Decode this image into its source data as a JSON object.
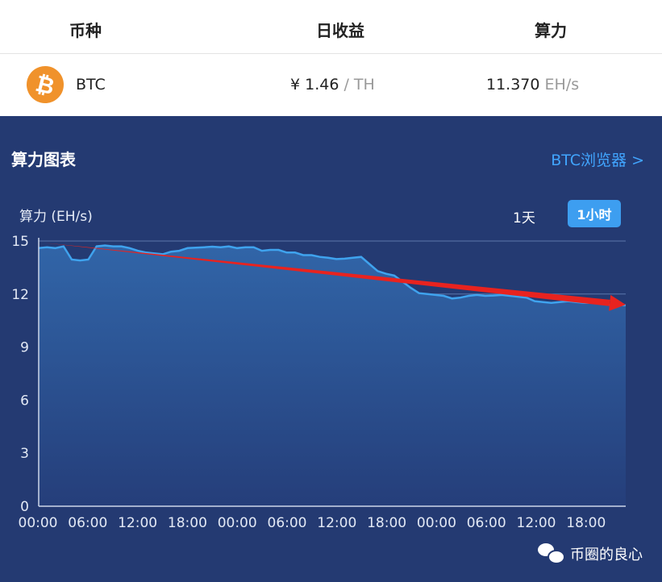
{
  "table": {
    "headers": {
      "coin": "币种",
      "daily_profit": "日收益",
      "hashrate": "算力"
    },
    "row": {
      "coin_icon_symbol": "₿",
      "coin": "BTC",
      "profit_value": "¥ 1.46",
      "profit_unit": "/ TH",
      "hashrate_value": "11.370",
      "hashrate_unit": "EH/s"
    }
  },
  "panel": {
    "title": "算力图表",
    "explorer_link": "BTC浏览器 >",
    "tabs": [
      "1天",
      "1小时"
    ],
    "active_tab": "1小时"
  },
  "watermark": {
    "text": "币圈的良心",
    "icon": "wechat-icon"
  },
  "colors": {
    "panel_bg": "#243a72",
    "line": "#3fa3ee",
    "accent": "#41a5ff",
    "arrow": "#e8231f",
    "coin_icon": "#f0922b"
  },
  "chart_data": {
    "type": "area",
    "ylabel": "算力 (EH/s)",
    "ylim": [
      0,
      15
    ],
    "yticks": [
      0,
      3,
      6,
      9,
      12,
      15
    ],
    "xticks": [
      "00:00",
      "06:00",
      "12:00",
      "18:00",
      "00:00",
      "06:00",
      "12:00",
      "18:00",
      "00:00",
      "06:00",
      "12:00",
      "18:00"
    ],
    "grid": true,
    "series": [
      {
        "values": [
          14.6,
          14.65,
          14.6,
          14.7,
          13.95,
          13.9,
          13.95,
          14.7,
          14.75,
          14.7,
          14.7,
          14.6,
          14.45,
          14.35,
          14.3,
          14.25,
          14.4,
          14.45,
          14.6,
          14.62,
          14.65,
          14.68,
          14.65,
          14.7,
          14.6,
          14.65,
          14.65,
          14.45,
          14.5,
          14.5,
          14.35,
          14.35,
          14.2,
          14.2,
          14.1,
          14.05,
          13.98,
          14.0,
          14.05,
          14.1,
          13.7,
          13.3,
          13.15,
          13.05,
          12.7,
          12.35,
          12.05,
          12.0,
          11.95,
          11.9,
          11.75,
          11.8,
          11.9,
          11.95,
          11.9,
          11.92,
          11.95,
          11.9,
          11.85,
          11.8,
          11.6,
          11.55,
          11.5,
          11.55,
          11.6,
          11.55,
          11.5,
          11.5,
          11.45,
          11.4,
          11.38,
          11.37
        ]
      }
    ],
    "annotation": {
      "type": "trend-arrow",
      "from": 14.9,
      "to": 11.4
    }
  }
}
